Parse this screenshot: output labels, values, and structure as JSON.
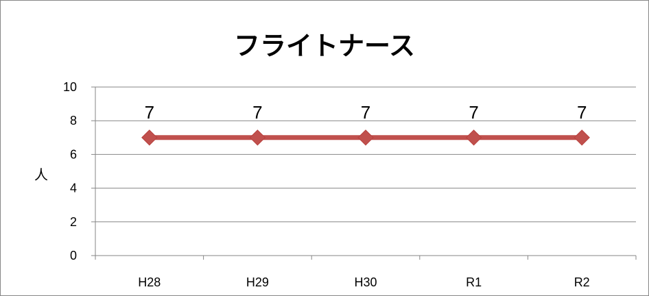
{
  "chart_data": {
    "type": "line",
    "title": "フライトナース",
    "ylabel": "人",
    "xlabel": "",
    "categories": [
      "H28",
      "H29",
      "H30",
      "R1",
      "R2"
    ],
    "values": [
      7,
      7,
      7,
      7,
      7
    ],
    "ylim": [
      0,
      10
    ],
    "yticks": [
      0,
      2,
      4,
      6,
      8,
      10
    ],
    "grid": true,
    "legend": "none",
    "data_labels": true,
    "line_color": "#c0504d"
  }
}
